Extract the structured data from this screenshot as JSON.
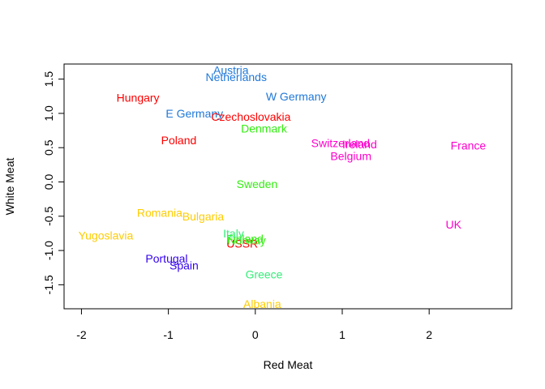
{
  "chart_data": {
    "type": "scatter",
    "title": "",
    "xlabel": "Red Meat",
    "ylabel": "White Meat",
    "xlim": [
      -2.2,
      2.95
    ],
    "ylim": [
      -1.85,
      1.72
    ],
    "x_ticks": [
      "-2",
      "-1",
      "0",
      "1",
      "2"
    ],
    "y_ticks": [
      "-1.5",
      "-1.0",
      "-0.5",
      "0.0",
      "0.5",
      "1.0",
      "1.5"
    ],
    "grid": false,
    "legend": "none",
    "points": [
      {
        "label": "Austria",
        "x": -0.28,
        "y": 1.63,
        "color": "#1f78d8"
      },
      {
        "label": "Netherlands",
        "x": -0.22,
        "y": 1.53,
        "color": "#1f78d8"
      },
      {
        "label": "W Germany",
        "x": 0.47,
        "y": 1.25,
        "color": "#1f78d8"
      },
      {
        "label": "E Germany",
        "x": -0.7,
        "y": 1.0,
        "color": "#1f78d8"
      },
      {
        "label": "Hungary",
        "x": -1.35,
        "y": 1.23,
        "color": "#ff0000"
      },
      {
        "label": "Czechoslovakia",
        "x": -0.05,
        "y": 0.95,
        "color": "#ff0000"
      },
      {
        "label": "Poland",
        "x": -0.88,
        "y": 0.61,
        "color": "#ff0000"
      },
      {
        "label": "USSR",
        "x": -0.15,
        "y": -0.9,
        "color": "#ff0000"
      },
      {
        "label": "Denmark",
        "x": 0.1,
        "y": 0.78,
        "color": "#33ee11"
      },
      {
        "label": "Sweden",
        "x": 0.02,
        "y": -0.03,
        "color": "#33ee11"
      },
      {
        "label": "Finland",
        "x": -0.12,
        "y": -0.83,
        "color": "#33ee11"
      },
      {
        "label": "Norway",
        "x": -0.1,
        "y": -0.85,
        "color": "#33ee11"
      },
      {
        "label": "Italy",
        "x": -0.25,
        "y": -0.75,
        "color": "#33ee77"
      },
      {
        "label": "Greece",
        "x": 0.1,
        "y": -1.35,
        "color": "#33ee77"
      },
      {
        "label": "Switzerland",
        "x": 0.98,
        "y": 0.57,
        "color": "#ff00cc"
      },
      {
        "label": "Ireland",
        "x": 1.2,
        "y": 0.55,
        "color": "#ff00cc"
      },
      {
        "label": "Belgium",
        "x": 1.1,
        "y": 0.38,
        "color": "#ff00cc"
      },
      {
        "label": "France",
        "x": 2.45,
        "y": 0.53,
        "color": "#ff00cc"
      },
      {
        "label": "UK",
        "x": 2.28,
        "y": -0.62,
        "color": "#ff00cc"
      },
      {
        "label": "Romania",
        "x": -1.1,
        "y": -0.45,
        "color": "#ffcc00"
      },
      {
        "label": "Bulgaria",
        "x": -0.6,
        "y": -0.5,
        "color": "#ffcc00"
      },
      {
        "label": "Yugoslavia",
        "x": -1.72,
        "y": -0.78,
        "color": "#ffcc00"
      },
      {
        "label": "Albania",
        "x": 0.08,
        "y": -1.78,
        "color": "#ffcc00"
      },
      {
        "label": "Portugal",
        "x": -1.02,
        "y": -1.12,
        "color": "#3300ee"
      },
      {
        "label": "Spain",
        "x": -0.82,
        "y": -1.22,
        "color": "#3300ee"
      }
    ]
  }
}
